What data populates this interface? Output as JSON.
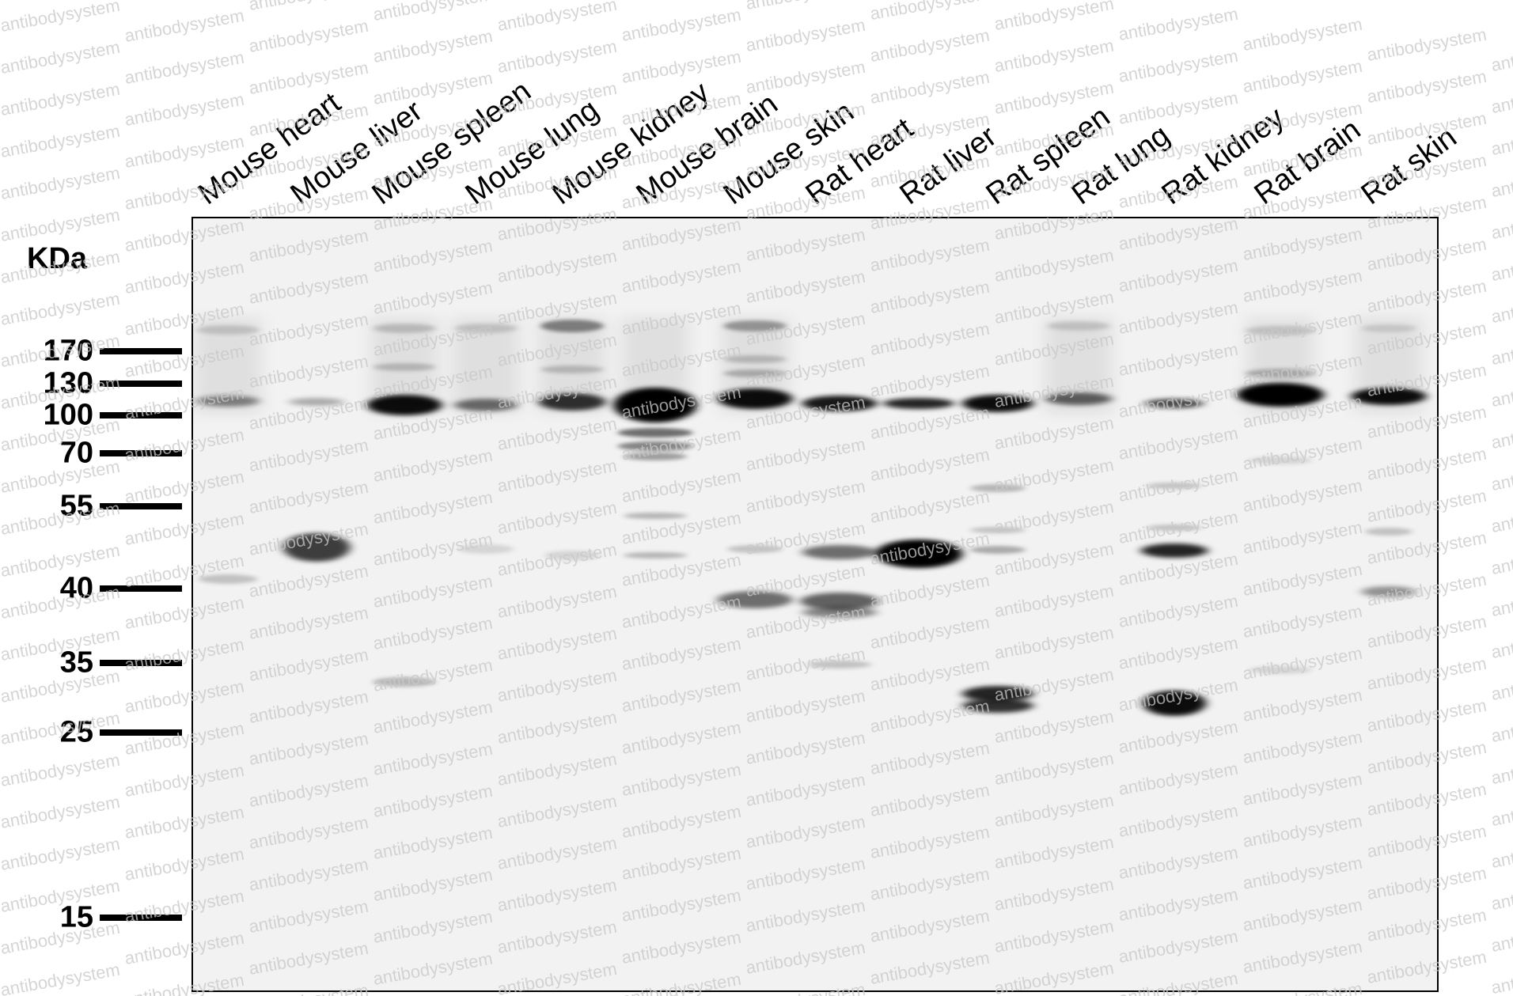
{
  "axis_unit": "KDa",
  "watermark_text": "antibodysystem",
  "lanes": [
    {
      "label": "Mouse heart"
    },
    {
      "label": "Mouse liver"
    },
    {
      "label": "Mouse spleen"
    },
    {
      "label": "Mouse lung"
    },
    {
      "label": "Mouse kidney"
    },
    {
      "label": "Mouse brain"
    },
    {
      "label": "Mouse skin"
    },
    {
      "label": "Rat heart"
    },
    {
      "label": "Rat liver"
    },
    {
      "label": "Rat spleen"
    },
    {
      "label": "Rat lung"
    },
    {
      "label": "Rat kidney"
    },
    {
      "label": "Rat brain"
    },
    {
      "label": "Rat skin"
    }
  ],
  "markers": [
    {
      "label": "170",
      "kda": 170
    },
    {
      "label": "130",
      "kda": 130
    },
    {
      "label": "100",
      "kda": 100
    },
    {
      "label": "70",
      "kda": 70
    },
    {
      "label": "55",
      "kda": 55
    },
    {
      "label": "40",
      "kda": 40
    },
    {
      "label": "35",
      "kda": 35
    },
    {
      "label": "25",
      "kda": 25
    },
    {
      "label": "15",
      "kda": 15
    }
  ],
  "colors": {
    "membrane_background": "#f2f2f2",
    "band": "#000000",
    "watermark": "#c8c8c8"
  }
}
